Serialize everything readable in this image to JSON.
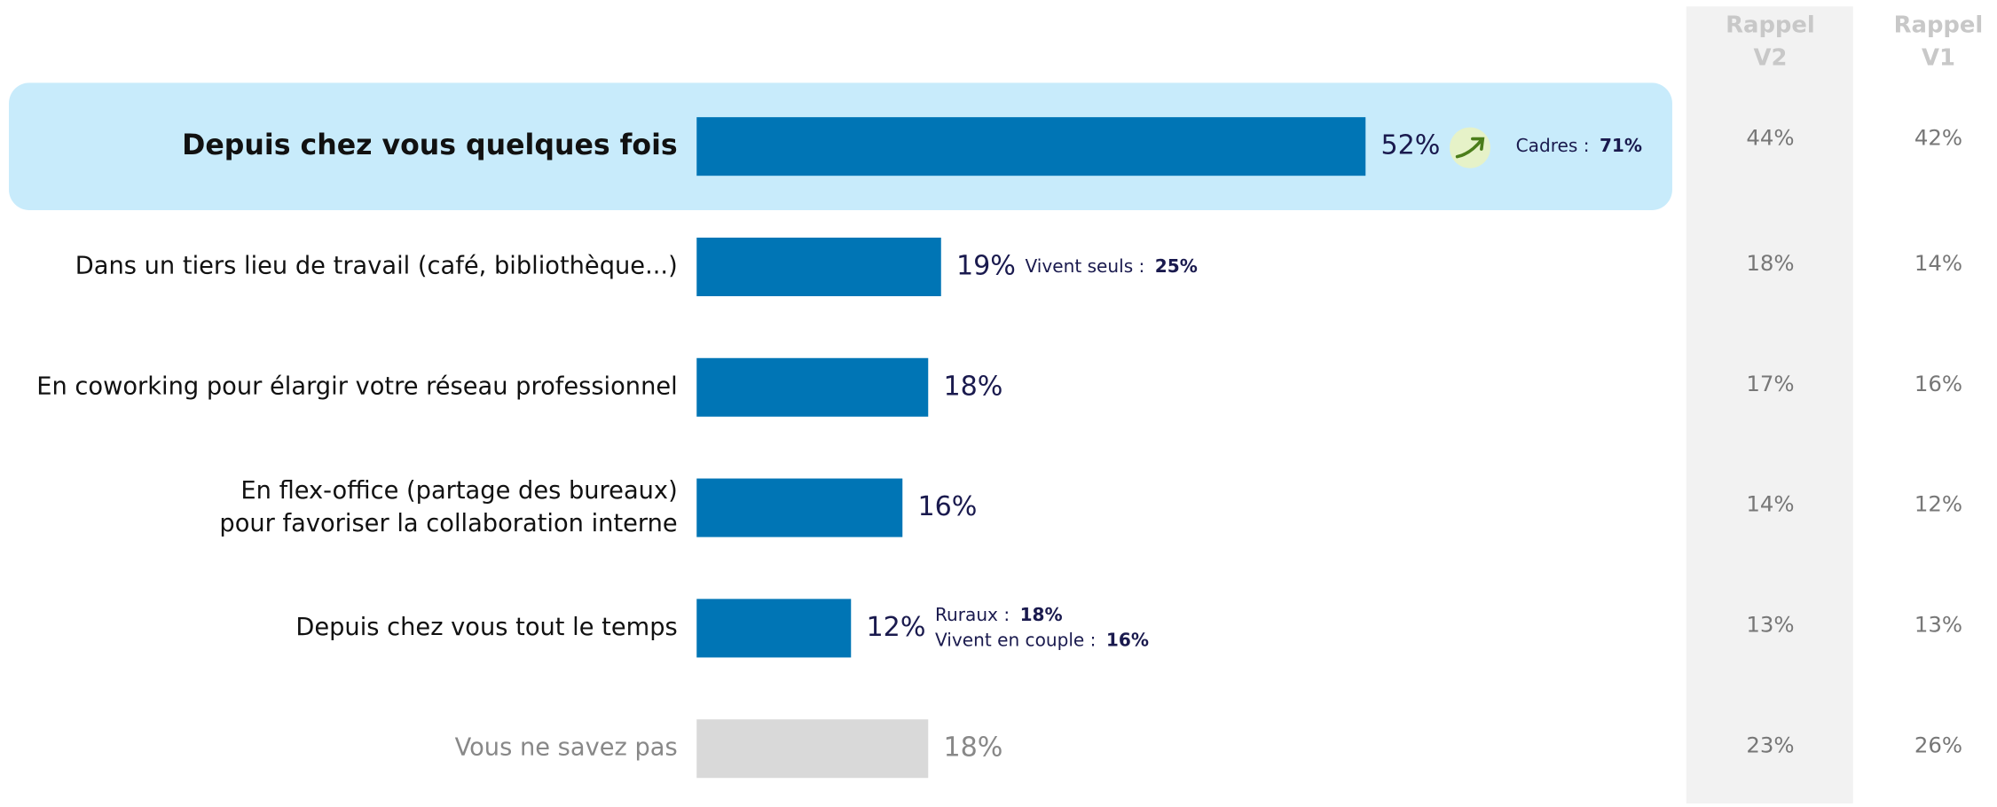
{
  "chart_data": {
    "type": "bar",
    "orientation": "horizontal",
    "categories": [
      "Depuis chez vous quelques fois",
      "Dans un tiers lieu de travail (café, bibliothèque...)",
      "En coworking pour élargir votre réseau professionnel",
      "En flex-office (partage des bureaux)\npour favoriser la collaboration interne",
      "Depuis chez vous tout le temps",
      "Vous ne savez pas"
    ],
    "values": [
      52,
      19,
      18,
      16,
      12,
      18
    ],
    "value_labels": [
      "52%",
      "19%",
      "18%",
      "16%",
      "12%",
      "18%"
    ],
    "colors": [
      "#0075b5",
      "#0075b5",
      "#0075b5",
      "#0075b5",
      "#0075b5",
      "#d9d9d9"
    ],
    "highlight": 0,
    "annotations": [
      [
        {
          "label": "Cadres :",
          "value": "71%"
        }
      ],
      [
        {
          "label": "Vivent seuls :",
          "value": "25%"
        }
      ],
      [],
      [],
      [
        {
          "label": "Ruraux :",
          "value": "18%"
        },
        {
          "label": "Vivent en couple :",
          "value": "16%"
        }
      ],
      []
    ],
    "recall": [
      {
        "header": [
          "Rappel",
          "V2"
        ],
        "values": [
          44,
          18,
          17,
          14,
          13,
          23
        ],
        "value_labels": [
          "44%",
          "18%",
          "17%",
          "14%",
          "13%",
          "23%"
        ]
      },
      {
        "header": [
          "Rappel",
          "V1"
        ],
        "values": [
          42,
          14,
          16,
          12,
          13,
          26
        ],
        "value_labels": [
          "42%",
          "14%",
          "16%",
          "12%",
          "13%",
          "26%"
        ]
      }
    ]
  }
}
